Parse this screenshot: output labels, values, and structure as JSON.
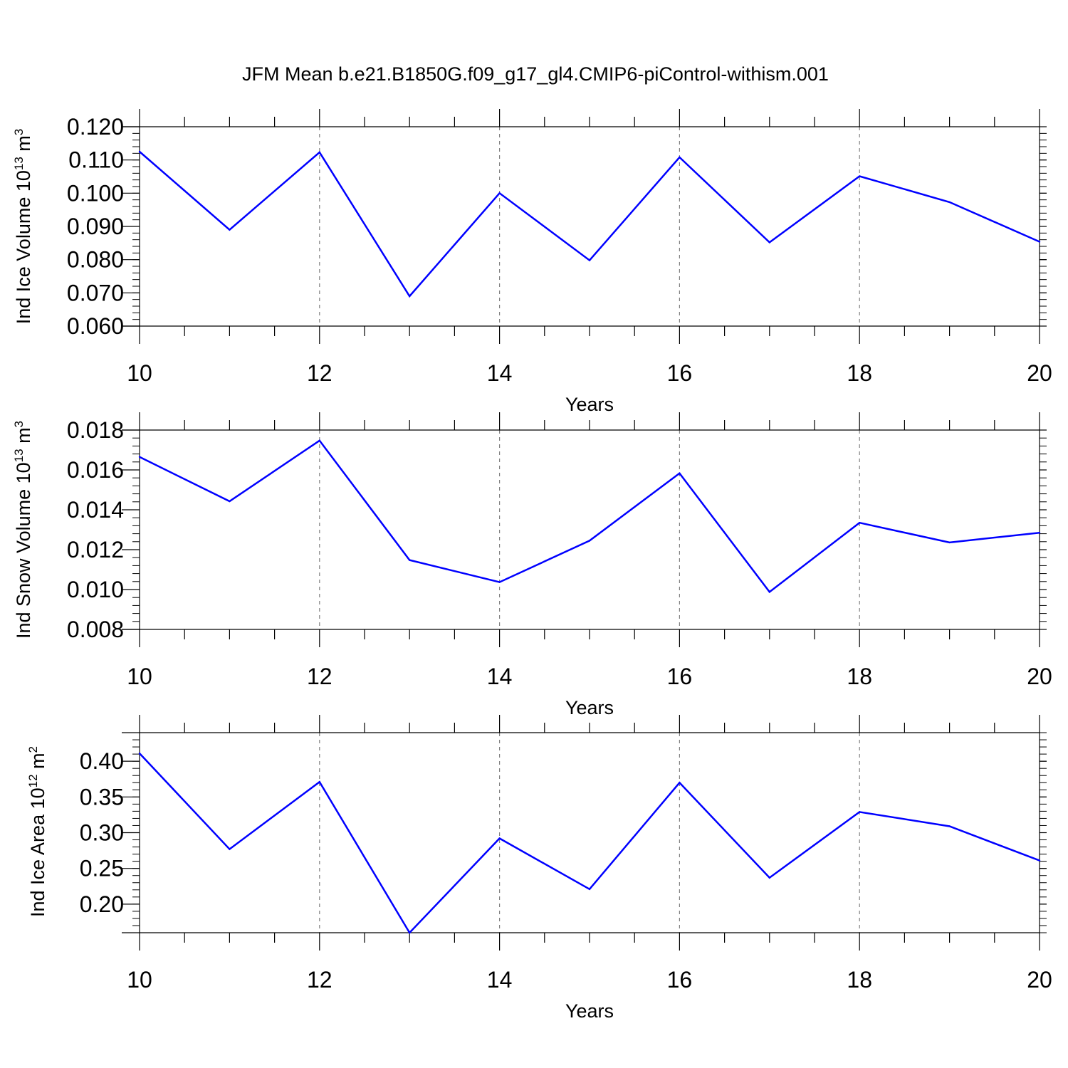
{
  "title": "JFM Mean b.e21.B1850G.f09_g17_gl4.CMIP6-piControl-withism.001",
  "colors": {
    "series": "#0000ff",
    "axes": "#000000",
    "grid": "#808080"
  },
  "chart_data": [
    {
      "type": "line",
      "ylabel": {
        "text": "Ind Ice Volume 10",
        "exp": "13",
        "unit": " m",
        "unit_exp": "3"
      },
      "xlabel": "Years",
      "xlim": [
        10,
        20
      ],
      "ylim": [
        0.06,
        0.12
      ],
      "x_ticks": [
        10,
        12,
        14,
        16,
        18,
        20
      ],
      "y_ticks": [
        "0.060",
        "0.070",
        "0.080",
        "0.090",
        "0.100",
        "0.110",
        "0.120"
      ],
      "grid": "vertical dashed at major x ticks",
      "x": [
        10,
        11,
        12,
        13,
        14,
        15,
        16,
        17,
        18,
        19,
        20
      ],
      "values": [
        0.1125,
        0.089,
        0.1123,
        0.069,
        0.1,
        0.0798,
        0.1108,
        0.0852,
        0.1051,
        0.0973,
        0.0854
      ]
    },
    {
      "type": "line",
      "ylabel": {
        "text": "Ind Snow Volume 10",
        "exp": "13",
        "unit": " m",
        "unit_exp": "3"
      },
      "xlabel": "Years",
      "xlim": [
        10,
        20
      ],
      "ylim": [
        0.008,
        0.018
      ],
      "x_ticks": [
        10,
        12,
        14,
        16,
        18,
        20
      ],
      "y_ticks": [
        "0.008",
        "0.010",
        "0.012",
        "0.014",
        "0.016",
        "0.018"
      ],
      "grid": "vertical dashed at major x ticks",
      "x": [
        10,
        11,
        12,
        13,
        14,
        15,
        16,
        17,
        18,
        19,
        20
      ],
      "values": [
        0.01665,
        0.01443,
        0.01747,
        0.01148,
        0.01037,
        0.01245,
        0.01583,
        0.00988,
        0.01335,
        0.01236,
        0.01285
      ]
    },
    {
      "type": "line",
      "ylabel": {
        "text": "Ind Ice Area 10",
        "exp": "12",
        "unit": " m",
        "unit_exp": "2"
      },
      "xlabel": "Years",
      "xlim": [
        10,
        20
      ],
      "ylim": [
        0.16,
        0.44
      ],
      "x_ticks": [
        10,
        12,
        14,
        16,
        18,
        20
      ],
      "y_ticks": [
        "0.20",
        "0.25",
        "0.30",
        "0.35",
        "0.40"
      ],
      "grid": "vertical dashed at major x ticks",
      "x": [
        10,
        11,
        12,
        13,
        14,
        15,
        16,
        17,
        18,
        19,
        20
      ],
      "values": [
        0.411,
        0.277,
        0.371,
        0.16,
        0.292,
        0.221,
        0.37,
        0.237,
        0.329,
        0.309,
        0.261
      ]
    }
  ]
}
